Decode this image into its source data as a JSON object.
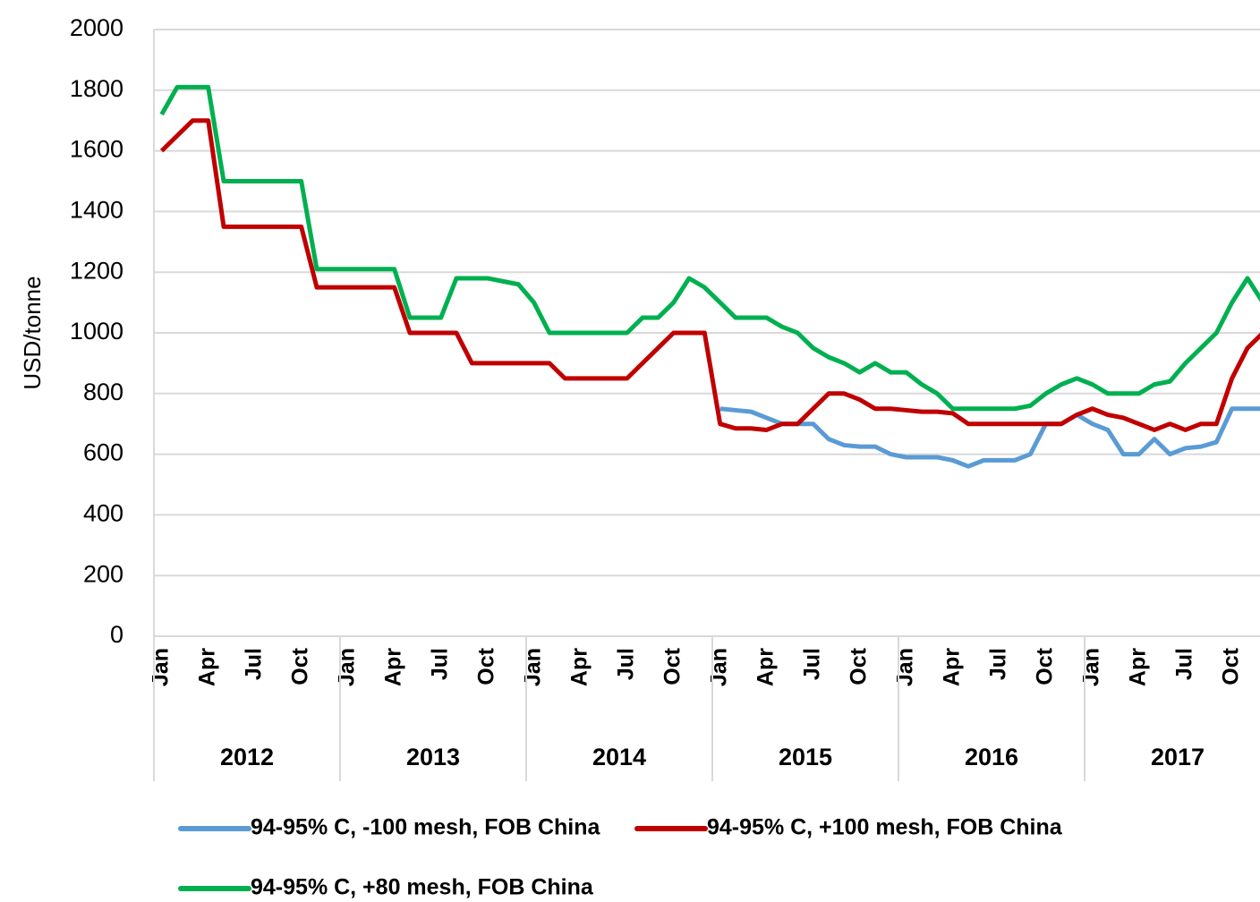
{
  "chart_data": {
    "type": "line",
    "y_label": "USD/tonne",
    "ylim": [
      0,
      2000
    ],
    "yticks": [
      0,
      200,
      400,
      600,
      800,
      1000,
      1200,
      1400,
      1600,
      1800,
      2000
    ],
    "grid": true,
    "categories": [
      "Jan",
      null,
      null,
      "Apr",
      null,
      null,
      "Jul",
      null,
      null,
      "Oct",
      null,
      null,
      "Jan",
      null,
      null,
      "Apr",
      null,
      null,
      "Jul",
      null,
      null,
      "Oct",
      null,
      null,
      "Jan",
      null,
      null,
      "Apr",
      null,
      null,
      "Jul",
      null,
      null,
      "Oct",
      null,
      null,
      "Jan",
      null,
      null,
      "Apr",
      null,
      null,
      "Jul",
      null,
      null,
      "Oct",
      null,
      null,
      "Jan",
      null,
      null,
      "Apr",
      null,
      null,
      "Jul",
      null,
      null,
      "Oct",
      null,
      null,
      "Jan",
      null,
      null,
      "Apr",
      null,
      null,
      "Jul",
      null,
      null,
      "Oct",
      null,
      null
    ],
    "year_labels": [
      "2012",
      "2013",
      "2014",
      "2015",
      "2016",
      "2017"
    ],
    "legend": "bottom",
    "series": [
      {
        "name": "94-95% C, -100 mesh, FOB China",
        "color": "#5b9bd5",
        "values": [
          null,
          null,
          null,
          null,
          null,
          null,
          null,
          null,
          null,
          null,
          null,
          null,
          null,
          null,
          null,
          null,
          null,
          null,
          null,
          null,
          null,
          null,
          null,
          null,
          null,
          null,
          null,
          null,
          null,
          null,
          null,
          null,
          null,
          null,
          null,
          null,
          750,
          745,
          740,
          720,
          700,
          700,
          700,
          650,
          630,
          625,
          625,
          600,
          590,
          590,
          590,
          580,
          560,
          580,
          580,
          580,
          600,
          700,
          700,
          730,
          700,
          680,
          600,
          600,
          650,
          600,
          620,
          625,
          640,
          750,
          750,
          750
        ]
      },
      {
        "name": "94-95% C, +100 mesh, FOB China",
        "color": "#c00000",
        "values": [
          1600,
          1650,
          1700,
          1700,
          1350,
          1350,
          1350,
          1350,
          1350,
          1350,
          1150,
          1150,
          1150,
          1150,
          1150,
          1150,
          1000,
          1000,
          1000,
          1000,
          900,
          900,
          900,
          900,
          900,
          900,
          850,
          850,
          850,
          850,
          850,
          900,
          950,
          1000,
          1000,
          1000,
          700,
          685,
          685,
          680,
          700,
          700,
          750,
          800,
          800,
          780,
          750,
          750,
          745,
          740,
          740,
          735,
          700,
          700,
          700,
          700,
          700,
          700,
          700,
          730,
          750,
          730,
          720,
          700,
          680,
          700,
          680,
          700,
          700,
          850,
          950,
          1000
        ]
      },
      {
        "name": "94-95% C, +80 mesh, FOB China",
        "color": "#00b050",
        "values": [
          1720,
          1810,
          1810,
          1810,
          1500,
          1500,
          1500,
          1500,
          1500,
          1500,
          1210,
          1210,
          1210,
          1210,
          1210,
          1210,
          1050,
          1050,
          1050,
          1180,
          1180,
          1180,
          1170,
          1160,
          1100,
          1000,
          1000,
          1000,
          1000,
          1000,
          1000,
          1050,
          1050,
          1100,
          1180,
          1150,
          1100,
          1050,
          1050,
          1050,
          1020,
          1000,
          950,
          920,
          900,
          870,
          900,
          870,
          870,
          830,
          800,
          750,
          750,
          750,
          750,
          750,
          760,
          800,
          830,
          850,
          830,
          800,
          800,
          800,
          830,
          840,
          900,
          950,
          1000,
          1100,
          1180,
          1100
        ]
      }
    ]
  }
}
